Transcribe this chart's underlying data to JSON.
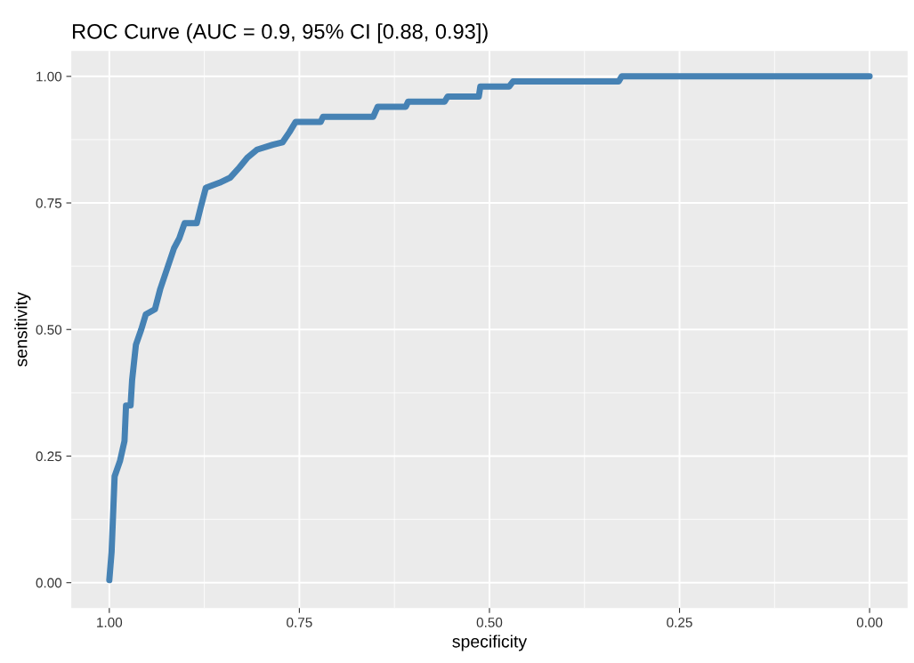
{
  "chart_data": {
    "type": "line",
    "title": "ROC Curve (AUC = 0.9, 95% CI [0.88, 0.93])",
    "xlabel": "specificity",
    "ylabel": "sensitivity",
    "series": [
      {
        "color": "#4682b4",
        "x": [
          1.0,
          0.997,
          0.993,
          0.986,
          0.98,
          0.978,
          0.972,
          0.97,
          0.965,
          0.958,
          0.952,
          0.94,
          0.933,
          0.924,
          0.915,
          0.908,
          0.901,
          0.885,
          0.88,
          0.873,
          0.855,
          0.841,
          0.829,
          0.818,
          0.806,
          0.785,
          0.772,
          0.763,
          0.755,
          0.722,
          0.719,
          0.653,
          0.647,
          0.61,
          0.607,
          0.559,
          0.555,
          0.514,
          0.512,
          0.474,
          0.469,
          0.33,
          0.326,
          0.0
        ],
        "values": [
          0.005,
          0.06,
          0.21,
          0.24,
          0.28,
          0.35,
          0.35,
          0.4,
          0.47,
          0.5,
          0.53,
          0.54,
          0.58,
          0.62,
          0.66,
          0.68,
          0.71,
          0.71,
          0.74,
          0.78,
          0.79,
          0.8,
          0.82,
          0.84,
          0.855,
          0.865,
          0.87,
          0.89,
          0.91,
          0.91,
          0.92,
          0.92,
          0.94,
          0.94,
          0.95,
          0.95,
          0.96,
          0.96,
          0.98,
          0.98,
          0.99,
          0.99,
          1.0,
          1.0
        ]
      }
    ],
    "xlim": [
      1.05,
      -0.05
    ],
    "ylim": [
      -0.05,
      1.05
    ],
    "xticks": [
      {
        "value": 1,
        "label": "1.00"
      },
      {
        "value": 0.75,
        "label": "0.75"
      },
      {
        "value": 0.5,
        "label": "0.50"
      },
      {
        "value": 0.25,
        "label": "0.25"
      },
      {
        "value": 0,
        "label": "0.00"
      }
    ],
    "yticks": [
      {
        "value": 0,
        "label": "0.00"
      },
      {
        "value": 0.25,
        "label": "0.25"
      },
      {
        "value": 0.5,
        "label": "0.50"
      },
      {
        "value": 0.75,
        "label": "0.75"
      },
      {
        "value": 1,
        "label": "1.00"
      }
    ],
    "grid": true
  }
}
